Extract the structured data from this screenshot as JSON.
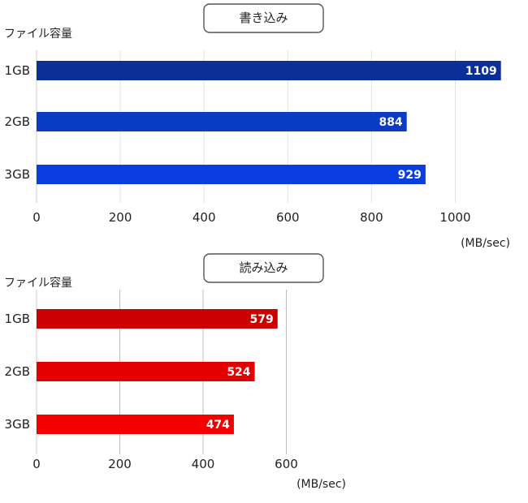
{
  "chart_data": [
    {
      "type": "bar",
      "orientation": "horizontal",
      "title": "書き込み",
      "ylabel": "ファイル容量",
      "unit": "(MB/sec)",
      "categories": [
        "1GB",
        "2GB",
        "3GB"
      ],
      "values": [
        1109,
        884,
        929
      ],
      "xlim": [
        0,
        1100
      ],
      "xticks": [
        0,
        200,
        400,
        600,
        800,
        1000
      ],
      "grid": true,
      "colors": [
        "#0a2f96",
        "#0a3bc4",
        "#0a3ee0"
      ]
    },
    {
      "type": "bar",
      "orientation": "horizontal",
      "title": "読み込み",
      "ylabel": "ファイル容量",
      "unit": "(MB/sec)",
      "categories": [
        "1GB",
        "2GB",
        "3GB"
      ],
      "values": [
        579,
        524,
        474
      ],
      "xlim": [
        0,
        600
      ],
      "xticks": [
        0,
        200,
        400,
        600
      ],
      "grid": true,
      "colors": [
        "#cc0000",
        "#e20000",
        "#f20000"
      ]
    }
  ]
}
